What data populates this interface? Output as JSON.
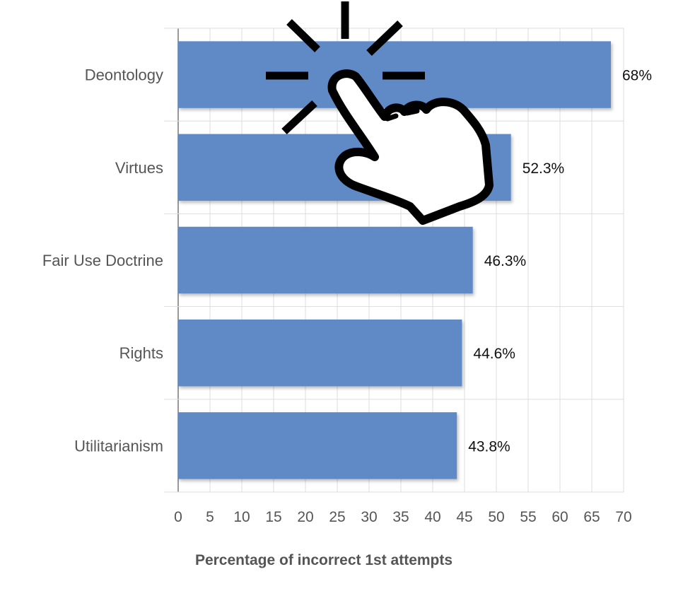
{
  "chart_data": {
    "type": "bar",
    "orientation": "horizontal",
    "categories": [
      "Deontology",
      "Virtues",
      "Fair Use Doctrine",
      "Rights",
      "Utilitarianism"
    ],
    "values": [
      68,
      52.3,
      46.3,
      44.6,
      43.8
    ],
    "data_labels": [
      "68%",
      "52.3%",
      "46.3%",
      "44.6%",
      "43.8%"
    ],
    "xlabel": "Percentage of incorrect 1st attempts",
    "ylabel": "",
    "xlim": [
      0,
      70
    ],
    "xticks": [
      "0",
      "5",
      "10",
      "15",
      "20",
      "25",
      "30",
      "35",
      "40",
      "45",
      "50",
      "55",
      "60",
      "65",
      "70"
    ],
    "grid": true,
    "legend": "none",
    "colors": {
      "bar": "#5f8ac6",
      "grid": "#dddddd",
      "axis": "#999999",
      "icon": "#000000"
    }
  },
  "overlay": {
    "icon": "tap-hand-icon"
  }
}
